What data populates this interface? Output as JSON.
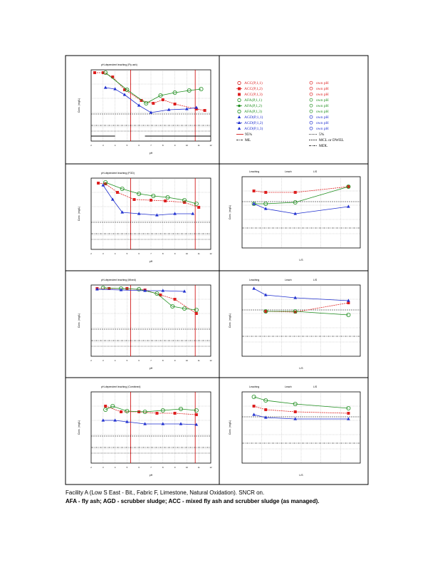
{
  "panels": [
    {
      "id": "A",
      "title": "pH-dependent leaching (Fly ash)",
      "xlabel": "pH",
      "ylabel": "Conc. (mg/L)"
    },
    {
      "id": "B",
      "title": "pH-dependent leaching (FGD)",
      "xlabel": "pH",
      "ylabel": "Conc. (mg/L)"
    },
    {
      "id": "C",
      "title": "pH-dependent leaching (Mixed)",
      "xlabel": "pH",
      "ylabel": "Conc. (mg/L)"
    },
    {
      "id": "D",
      "title": "pH-dependent leaching (Combined)",
      "xlabel": "pH",
      "ylabel": "Conc. (mg/L)"
    },
    {
      "id": "E",
      "title": "",
      "xlabel": "L/S",
      "ylabel": "Conc. (mg/L)",
      "header": [
        "Leaching",
        "Leach",
        "L/S"
      ]
    },
    {
      "id": "F",
      "title": "",
      "xlabel": "L/S",
      "ylabel": "Conc. (mg/L)",
      "header": [
        "Leaching",
        "Leach",
        "L/S"
      ]
    },
    {
      "id": "G",
      "title": "",
      "xlabel": "L/S",
      "ylabel": "Conc. (mg/L)",
      "header": [
        "Leaching",
        "Leach",
        "L/S"
      ]
    }
  ],
  "legend": {
    "rows": [
      {
        "label": "ACC(P,1,1)",
        "right": "own pH",
        "color": "#dd1f1f",
        "marker": "circle"
      },
      {
        "label": "ACC(P,1,2)",
        "right": "own pH",
        "color": "#dd1f1f",
        "marker": "square-dash"
      },
      {
        "label": "ACC(P,1,3)",
        "right": "own pH",
        "color": "#dd1f1f",
        "marker": "square"
      },
      {
        "label": "AFA(P,1,1)",
        "right": "own pH",
        "color": "#1f8f1f",
        "marker": "circle"
      },
      {
        "label": "AFA(P,1,2)",
        "right": "own pH",
        "color": "#1f8f1f",
        "marker": "diamond-line"
      },
      {
        "label": "AFA(P,1,3)",
        "right": "own pH",
        "color": "#1f8f1f",
        "marker": "circle"
      },
      {
        "label": "AGD(P,1,1)",
        "right": "own pH",
        "color": "#1f2fcf",
        "marker": "triangle"
      },
      {
        "label": "AGD(P,1,2)",
        "right": "own pH",
        "color": "#1f2fcf",
        "marker": "triangle-line"
      },
      {
        "label": "AGD(P,1,3)",
        "right": "own pH",
        "color": "#1f2fcf",
        "marker": "triangle"
      }
    ],
    "lines": [
      {
        "left": "95%",
        "right": "5%"
      },
      {
        "left": "ML",
        "right": "MCL or DWEL"
      },
      {
        "left": "",
        "right": "MDL"
      }
    ]
  },
  "caption": {
    "line1": "Facility A (Low S East - Bit., Fabric F, Limestone, Natural Oxidation). SNCR on.",
    "line2": "AFA - fly ash; AGD - scrubber sludge; ACC - mixed fly ash and scrubber sludge (as managed)."
  },
  "chart_data": [
    {
      "type": "scatter",
      "panel": "A",
      "series": [
        {
          "name": "ACC",
          "values": [
            [
              2.0,
              1.8
            ],
            [
              3.2,
              1.6
            ],
            [
              4.5,
              1.4
            ],
            [
              6.0,
              1.3
            ],
            [
              7.0,
              1.2
            ],
            [
              8.5,
              1.0
            ]
          ]
        },
        {
          "name": "AFA",
          "values": [
            [
              2.5,
              1.9
            ],
            [
              5.0,
              1.5
            ],
            [
              6.5,
              1.4
            ],
            [
              8.0,
              1.5
            ],
            [
              10.0,
              1.6
            ]
          ]
        },
        {
          "name": "AGD",
          "values": [
            [
              2.0,
              1.3
            ],
            [
              3.5,
              1.1
            ],
            [
              5.0,
              0.8
            ],
            [
              7.0,
              0.7
            ],
            [
              9.5,
              0.8
            ]
          ]
        }
      ]
    },
    {
      "type": "scatter",
      "panel": "B",
      "series": [
        {
          "name": "ACC",
          "values": [
            [
              2.0,
              1.8
            ],
            [
              4.0,
              1.5
            ],
            [
              7.0,
              1.3
            ],
            [
              10.0,
              1.2
            ]
          ]
        },
        {
          "name": "AFA",
          "values": [
            [
              2.0,
              1.9
            ],
            [
              5.0,
              1.7
            ],
            [
              8.0,
              1.5
            ],
            [
              10.5,
              1.3
            ]
          ]
        },
        {
          "name": "AGD",
          "values": [
            [
              1.5,
              1.5
            ],
            [
              3.0,
              1.0
            ],
            [
              6.0,
              0.9
            ],
            [
              10.0,
              0.9
            ]
          ]
        }
      ]
    }
  ]
}
